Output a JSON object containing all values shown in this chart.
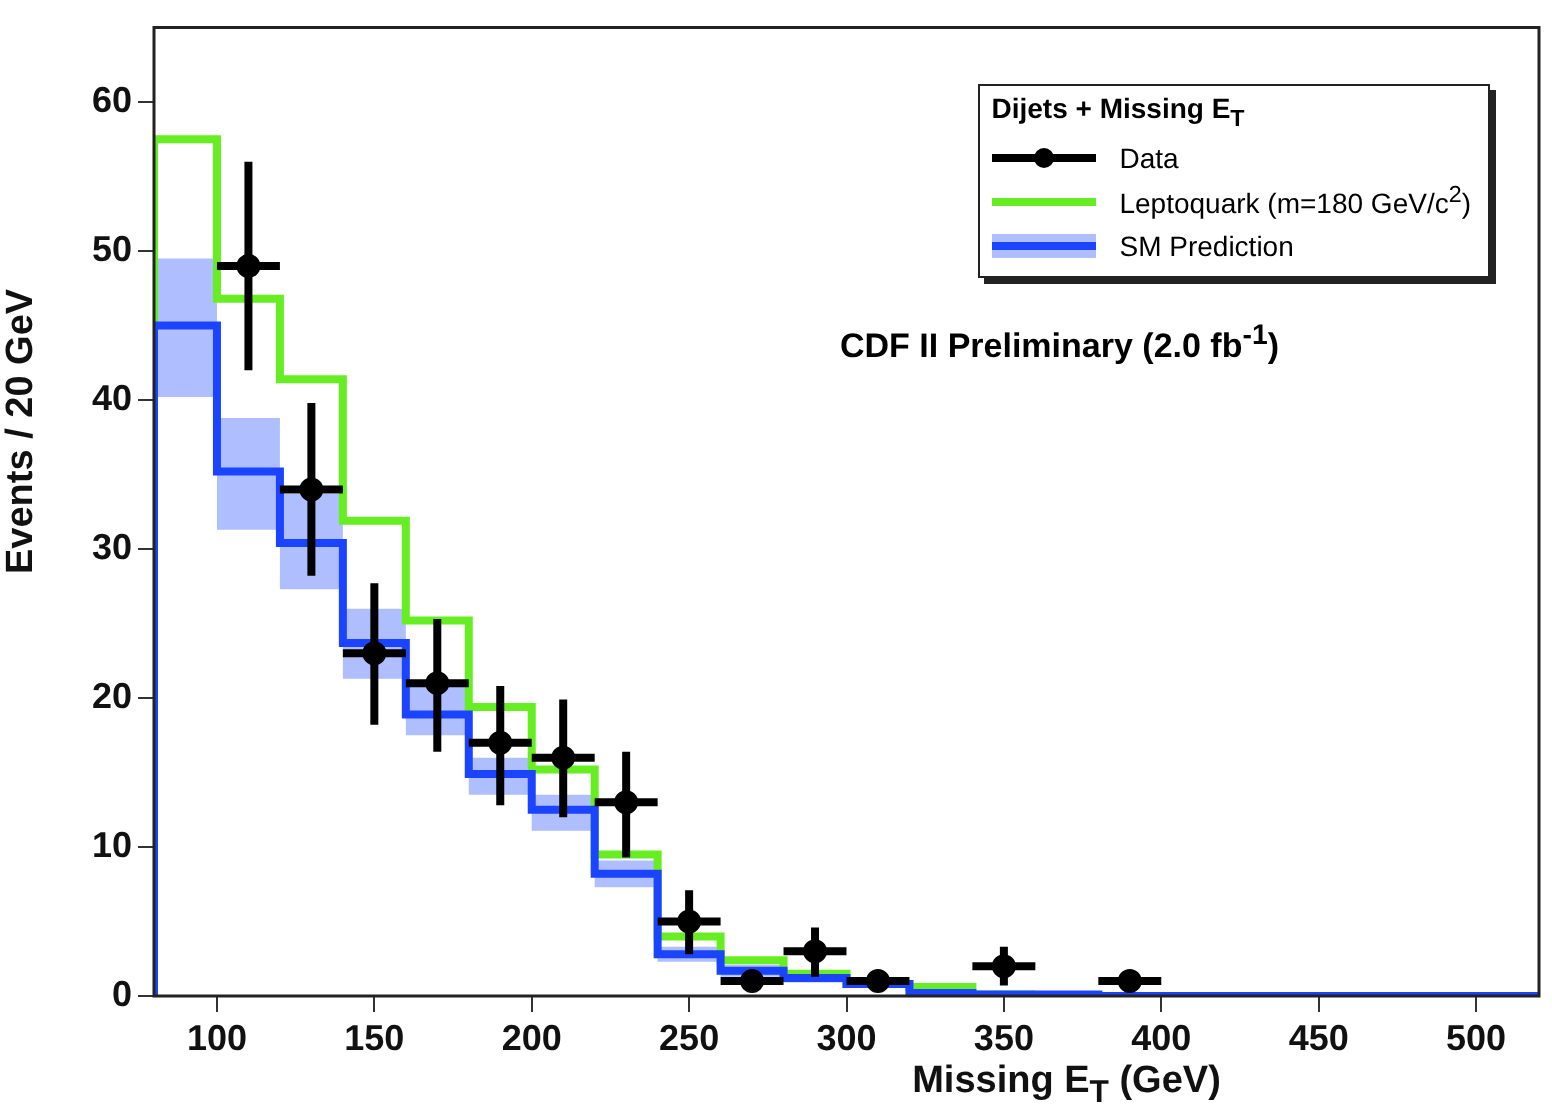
{
  "chart_data": {
    "type": "step",
    "xlabel": "Missing E$_{T}$ (GeV)",
    "ylabel": "Events / 20 GeV",
    "legend_title": "Dijets + Missing E$_{T}$",
    "annotations": [
      "CDF II Preliminary (2.0 fb$^{-1}$)"
    ],
    "series": [
      {
        "name": "Data",
        "type": "scatter",
        "color": "#000000",
        "marker": "circle",
        "x": [
          110,
          130,
          150,
          170,
          190,
          210,
          230,
          250,
          270,
          290,
          310,
          350,
          390
        ],
        "values": [
          49,
          34,
          23,
          21,
          17,
          16,
          13,
          5,
          1,
          3,
          1,
          2,
          1
        ],
        "xerrors": [
          10,
          10,
          10,
          10,
          10,
          10,
          10,
          10,
          10,
          10,
          10,
          10,
          10
        ],
        "errors": [
          [
            42,
            56
          ],
          [
            28.2,
            39.8
          ],
          [
            18.2,
            27.7
          ],
          [
            16.4,
            25.3
          ],
          [
            12.8,
            20.8
          ],
          [
            12,
            19.9
          ],
          [
            9.3,
            16.4
          ],
          [
            2.8,
            7.1
          ],
          [
            0.5,
            1.5
          ],
          [
            1.3,
            4.6
          ],
          [
            0.5,
            1.6
          ],
          [
            0.7,
            3.3
          ],
          [
            0.5,
            1.5
          ]
        ]
      },
      {
        "name": "Leptoquark (m=180 GeV/c$^{2}$)",
        "color": "#66ee22",
        "x": [
          80,
          100,
          120,
          140,
          160,
          180,
          200,
          220,
          240,
          260,
          280,
          300,
          320,
          340,
          360
        ],
        "values": [
          0,
          57.5,
          46.8,
          41.4,
          31.9,
          25.2,
          19.4,
          15.2,
          9.5,
          4,
          2.4,
          1.5,
          0.8,
          0.6,
          0.1
        ]
      },
      {
        "name": "SM Prediction",
        "color": "#1a44ff",
        "x": [
          80,
          100,
          120,
          140,
          160,
          180,
          200,
          220,
          240,
          260,
          280,
          300,
          320,
          340,
          360,
          380,
          400,
          520
        ],
        "values": [
          0,
          45,
          35.2,
          30.4,
          23.7,
          18.9,
          14.9,
          12.5,
          8.2,
          2.8,
          1.7,
          1.2,
          0.8,
          0.2,
          0.1,
          0.1,
          0,
          0
        ],
        "lower": [
          0,
          40.2,
          31.3,
          27.3,
          21.3,
          17.5,
          13.5,
          11.1,
          7.3,
          2.3,
          1.3,
          0.9,
          0.6,
          0.1,
          0,
          0,
          0,
          0
        ],
        "upper": [
          0,
          49.5,
          38.8,
          33.7,
          26,
          20.8,
          16,
          13.5,
          9.1,
          3.3,
          2.1,
          1.5,
          1,
          0.3,
          0.2,
          0.2,
          0,
          0
        ]
      }
    ],
    "xlim": [
      80,
      520
    ],
    "xticks": [
      100,
      150,
      200,
      250,
      300,
      350,
      400,
      450,
      500
    ],
    "ylim": [
      0,
      65
    ],
    "yticks": [
      0,
      10,
      20,
      30,
      40,
      50,
      60
    ],
    "grid": false,
    "legend": "top right"
  }
}
